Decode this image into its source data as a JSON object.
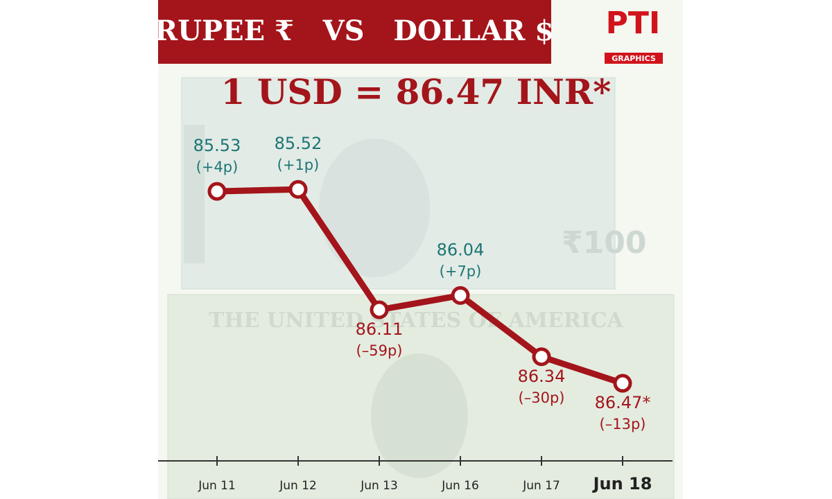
{
  "chart_data": {
    "type": "line",
    "title": "RUPEE ₹   VS   DOLLAR $",
    "headline": "1 USD = 86.47 INR*",
    "logo": {
      "name": "PTI",
      "label": "GRAPHICS"
    },
    "categories": [
      "Jun 11",
      "Jun 12",
      "Jun 13",
      "Jun 16",
      "Jun 17",
      "Jun 18"
    ],
    "values": [
      85.53,
      85.52,
      86.11,
      86.04,
      86.34,
      86.47
    ],
    "value_labels": [
      "85.53",
      "85.52",
      "86.11",
      "86.04",
      "86.34",
      "86.47*"
    ],
    "change_labels": [
      "(+4p)",
      "(+1p)",
      "(–59p)",
      "(+7p)",
      "(–30p)",
      "(–13p)"
    ],
    "label_colors": [
      "#1d7575",
      "#1d7575",
      "#a3151b",
      "#1d7575",
      "#a3151b",
      "#a3151b"
    ],
    "label_positions": [
      "above",
      "above",
      "below",
      "above",
      "below",
      "below"
    ],
    "color": "#a3151b",
    "ylim": [
      85.0,
      86.85
    ],
    "y_reversed": true
  }
}
